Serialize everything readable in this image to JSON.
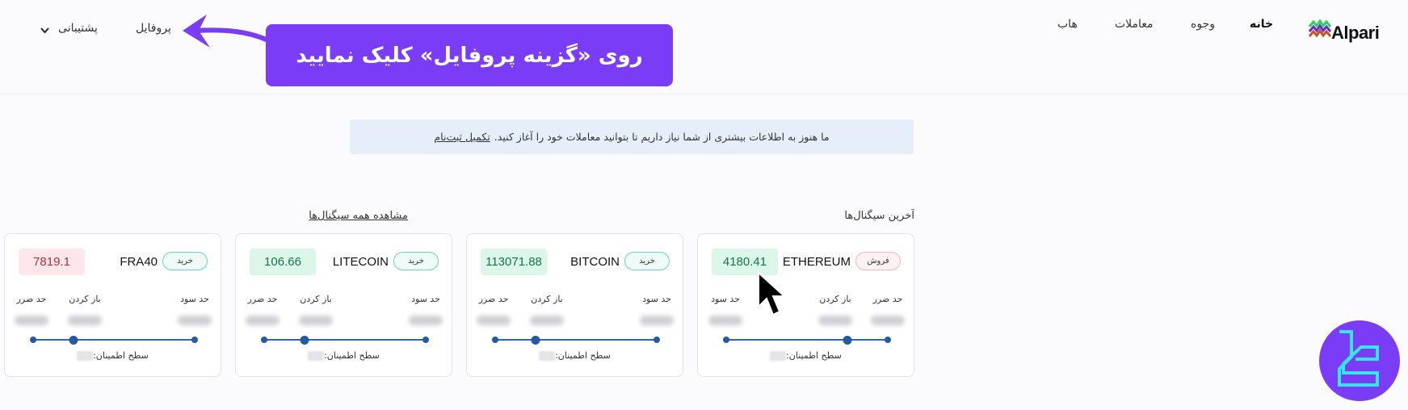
{
  "header": {
    "brand": "Alpari",
    "nav": [
      {
        "label": "خانه",
        "active": true
      },
      {
        "label": "وجوه"
      },
      {
        "label": "معاملات"
      },
      {
        "label": "هاب"
      }
    ],
    "profile": "پروفایل",
    "support": "پشتیبانی"
  },
  "callout": {
    "text": "روی «گزینه پروفایل» کلیک نمایید",
    "color": "#7a3cf5"
  },
  "banner": {
    "text": "ما هنوز به اطلاعات بیشتری از شما نیاز داریم تا بتوانید معاملات خود را آغاز کنید.",
    "link": "تکمیل ثبت‌نام"
  },
  "signals": {
    "title": "آخرین سیگنال‌ها",
    "view_all": "مشاهده همه سیگنال‌ها",
    "labels": {
      "tp": "حد سود",
      "open": "باز کردن",
      "sl": "حد ضرر",
      "confidence": "سطح اطمینان:"
    },
    "cards": [
      {
        "symbol": "ETHEREUM",
        "side": "فروش",
        "side_type": "sell",
        "price": "4180.41",
        "trend": "up"
      },
      {
        "symbol": "BITCOIN",
        "side": "خرید",
        "side_type": "buy",
        "price": "113071.88",
        "trend": "up"
      },
      {
        "symbol": "LITECOIN",
        "side": "خرید",
        "side_type": "buy",
        "price": "106.66",
        "trend": "up"
      },
      {
        "symbol": "FRA40",
        "side": "خرید",
        "side_type": "buy",
        "price": "7819.1",
        "trend": "down"
      }
    ]
  },
  "colors": {
    "accent": "#7a3cf5",
    "line": "#3565a8",
    "up": "#17744a",
    "down": "#a8323c"
  }
}
